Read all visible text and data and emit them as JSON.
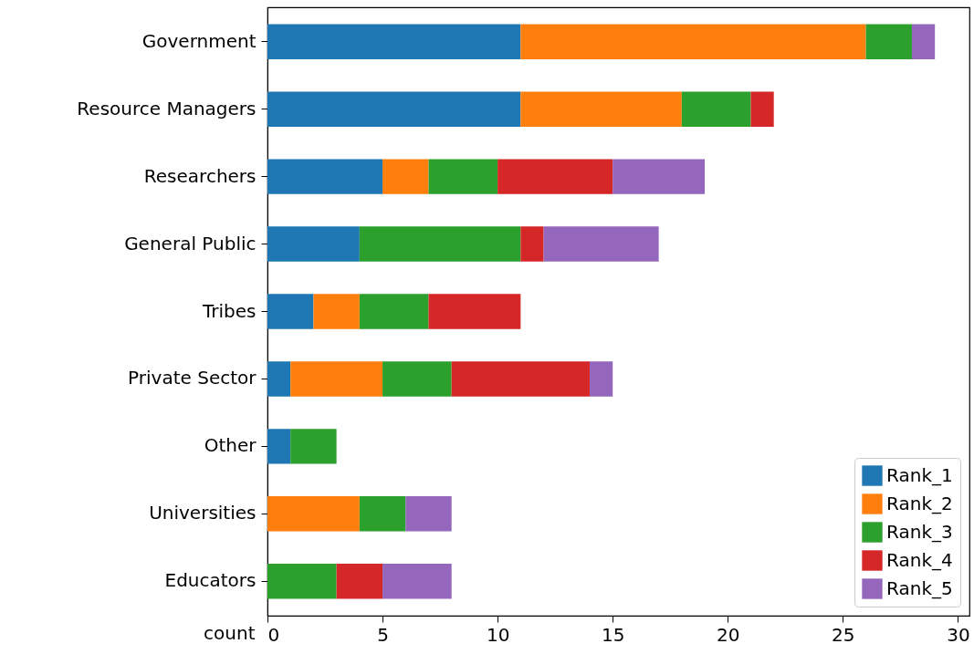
{
  "chart_data": {
    "type": "bar",
    "orientation": "horizontal",
    "stacked": true,
    "xlabel": "count",
    "categories": [
      "Government",
      "Resource Managers",
      "Researchers",
      "General Public",
      "Tribes",
      "Private Sector",
      "Other",
      "Universities",
      "Educators"
    ],
    "series": [
      {
        "name": "Rank_1",
        "color": "#1f77b4",
        "values": [
          11,
          11,
          5,
          4,
          2,
          1,
          1,
          0,
          0
        ]
      },
      {
        "name": "Rank_2",
        "color": "#ff7f0e",
        "values": [
          15,
          7,
          2,
          0,
          2,
          4,
          0,
          4,
          0
        ]
      },
      {
        "name": "Rank_3",
        "color": "#2ca02c",
        "values": [
          2,
          3,
          3,
          7,
          3,
          3,
          2,
          2,
          3
        ]
      },
      {
        "name": "Rank_4",
        "color": "#d62728",
        "values": [
          0,
          1,
          5,
          1,
          4,
          6,
          0,
          0,
          2
        ]
      },
      {
        "name": "Rank_5",
        "color": "#9467bd",
        "values": [
          1,
          0,
          4,
          5,
          0,
          1,
          0,
          2,
          3
        ]
      }
    ],
    "xlim": [
      0,
      30.5
    ],
    "xticks": [
      0,
      5,
      10,
      15,
      20,
      25,
      30
    ],
    "grid": false,
    "legend": "bottom right"
  }
}
